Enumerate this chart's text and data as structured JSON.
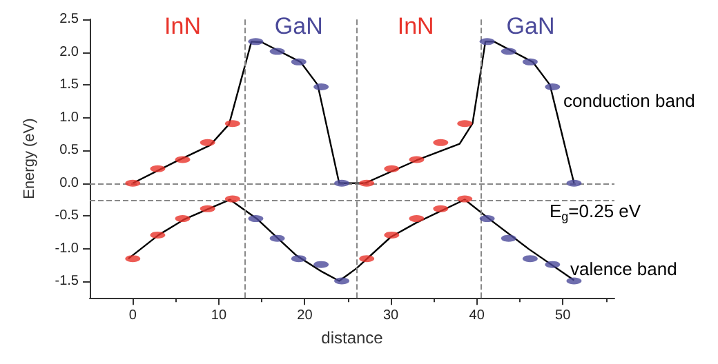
{
  "chart_data": {
    "type": "line",
    "xlabel": "distance",
    "ylabel": "Energy (eV)",
    "xlim": [
      -5,
      56
    ],
    "ylim": [
      -1.75,
      2.5
    ],
    "xticks": [
      0,
      10,
      20,
      30,
      40,
      50
    ],
    "yticks": [
      {
        "value": -1.5,
        "label": "-1.5"
      },
      {
        "value": -1,
        "label": "-1.0"
      },
      {
        "value": -0.5,
        "label": "-0.5"
      },
      {
        "value": 0,
        "label": "0.0"
      },
      {
        "value": 0.5,
        "label": "0.5"
      },
      {
        "value": 1,
        "label": "1.0"
      },
      {
        "value": 1.5,
        "label": "1.5"
      },
      {
        "value": 2,
        "label": "2.0"
      },
      {
        "value": 2.5,
        "label": "2.5"
      }
    ],
    "legend": false,
    "series": [
      {
        "color": "#000000",
        "marker": "none",
        "line_style": "solid",
        "x": [
          0,
          5,
          9,
          11.2,
          13.8,
          15,
          19.5,
          21.5,
          24,
          27,
          33,
          38,
          39.5,
          41,
          42,
          46.5,
          48.5,
          51.3
        ],
        "values": [
          0,
          0.33,
          0.58,
          0.9,
          2.16,
          2.15,
          1.85,
          1.5,
          0,
          0,
          0.35,
          0.6,
          0.91,
          2.16,
          2.16,
          1.85,
          1.5,
          0
        ]
      },
      {
        "color": "#000000",
        "marker": "none",
        "line_style": "solid",
        "x": [
          -0.5,
          3,
          6,
          9,
          11.3,
          14.5,
          19,
          22,
          24,
          26,
          30,
          33,
          38.6,
          41.5,
          46,
          51.3
        ],
        "values": [
          -1.15,
          -0.79,
          -0.55,
          -0.38,
          -0.25,
          -0.55,
          -1.1,
          -1.35,
          -1.49,
          -1.3,
          -0.82,
          -0.6,
          -0.25,
          -0.55,
          -1,
          -1.48
        ]
      },
      {
        "type": "scatter",
        "name": "InN",
        "color": "#e8332a",
        "marker": "circle",
        "x": [
          0,
          2.9,
          5.8,
          8.7,
          11.6,
          27.2,
          30.1,
          33,
          35.8,
          38.6,
          0,
          2.9,
          5.8,
          8.7,
          11.6,
          27.2,
          30.1,
          33,
          35.8,
          38.6
        ],
        "values": [
          0,
          0.22,
          0.36,
          0.62,
          0.91,
          0,
          0.22,
          0.36,
          0.62,
          0.91,
          -1.15,
          -0.79,
          -0.54,
          -0.39,
          -0.24,
          -1.15,
          -0.79,
          -0.54,
          -0.39,
          -0.24
        ]
      },
      {
        "type": "scatter",
        "name": "GaN",
        "color": "#4b4a9a",
        "marker": "circle",
        "x": [
          14.3,
          16.8,
          19.3,
          21.9,
          24.3,
          41.2,
          43.7,
          46.2,
          48.8,
          51.3,
          14.3,
          16.8,
          19.3,
          21.9,
          24.3,
          41.2,
          43.7,
          46.2,
          48.8,
          51.3
        ],
        "values": [
          2.16,
          2.01,
          1.85,
          1.47,
          0,
          2.16,
          2.01,
          1.85,
          1.47,
          0,
          -0.54,
          -0.84,
          -1.15,
          -1.24,
          -1.49,
          -0.54,
          -0.84,
          -1.15,
          -1.24,
          -1.49
        ]
      }
    ],
    "ref_lines": [
      {
        "axis": "y",
        "value": 0,
        "color": "#888888",
        "line_style": "dashed"
      },
      {
        "axis": "y",
        "value": -0.25,
        "color": "#888888",
        "line_style": "dashed"
      },
      {
        "axis": "x",
        "value": 13,
        "color": "#888888",
        "line_style": "dashed"
      },
      {
        "axis": "x",
        "value": 26,
        "color": "#888888",
        "line_style": "dashed"
      },
      {
        "axis": "x",
        "value": 40.5,
        "color": "#888888",
        "line_style": "dashed"
      }
    ],
    "annotations": [
      "conduction band",
      "E$_{g}$=0.25 eV",
      "valence band"
    ]
  }
}
